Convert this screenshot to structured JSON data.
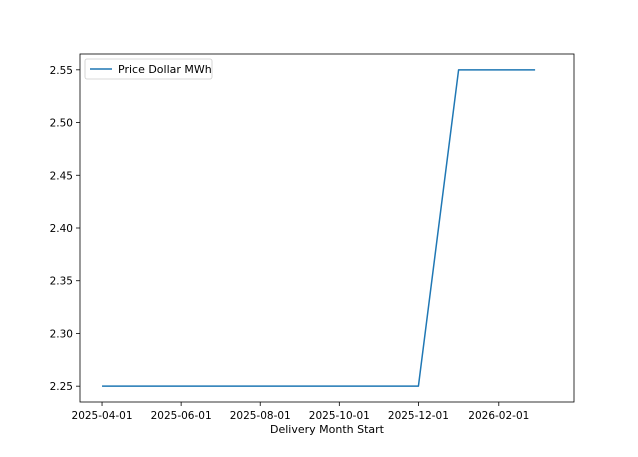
{
  "chart_data": {
    "type": "line",
    "title": "",
    "xlabel": "Delivery Month Start",
    "ylabel": "",
    "x_axis_type": "date",
    "xlim": [
      "2025-03-15",
      "2026-03-31"
    ],
    "ylim": [
      2.235,
      2.565
    ],
    "x_tick_labels": [
      "2025-04-01",
      "2025-06-01",
      "2025-08-01",
      "2025-10-01",
      "2025-12-01",
      "2026-02-01"
    ],
    "y_tick_labels": [
      "2.25",
      "2.30",
      "2.35",
      "2.40",
      "2.45",
      "2.50",
      "2.55"
    ],
    "grid": false,
    "legend_position": "upper-left",
    "series": [
      {
        "name": "Price Dollar MWh",
        "color": "#1f77b4",
        "x": [
          "2025-04-01",
          "2025-05-01",
          "2025-06-01",
          "2025-07-01",
          "2025-08-01",
          "2025-09-01",
          "2025-10-01",
          "2025-11-01",
          "2025-12-01",
          "2026-01-01",
          "2026-02-01",
          "2026-03-01"
        ],
        "y": [
          2.25,
          2.25,
          2.25,
          2.25,
          2.25,
          2.25,
          2.25,
          2.25,
          2.25,
          2.55,
          2.55,
          2.55
        ]
      }
    ]
  }
}
